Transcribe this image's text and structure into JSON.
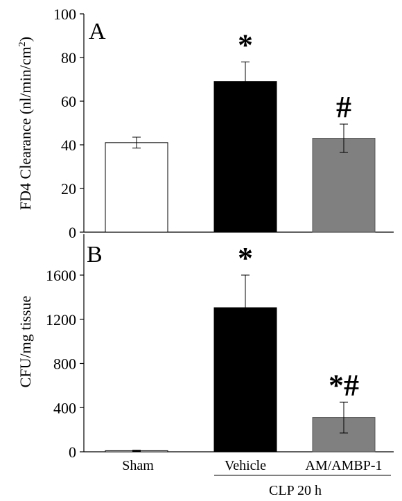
{
  "chart_data": [
    {
      "panel": "A",
      "type": "bar",
      "categories": [
        "Sham",
        "Vehicle",
        "AM/AMBP-1"
      ],
      "values": [
        41,
        69,
        43
      ],
      "errors": [
        2.5,
        9,
        6.5
      ],
      "annotations": [
        "",
        "*",
        "#"
      ],
      "colors": [
        "#ffffff",
        "#000000",
        "#808080"
      ],
      "ylabel": "FD4 Clearance (nl/min/cm",
      "ylabel_sup": "2",
      "ylabel_close": ")",
      "ylim": [
        0,
        100
      ],
      "yticks": [
        0,
        20,
        40,
        60,
        80,
        100
      ]
    },
    {
      "panel": "B",
      "type": "bar",
      "categories": [
        "Sham",
        "Vehicle",
        "AM/AMBP-1"
      ],
      "values": [
        10,
        1305,
        310
      ],
      "errors": [
        5,
        295,
        140
      ],
      "annotations": [
        "",
        "*",
        "*#"
      ],
      "colors": [
        "#ffffff",
        "#000000",
        "#808080"
      ],
      "ylabel": "CFU/mg tissue",
      "ylim": [
        0,
        1800
      ],
      "yticks": [
        0,
        400,
        800,
        1200,
        1600
      ]
    }
  ],
  "xaxis": {
    "group_label": "CLP 20 h"
  }
}
